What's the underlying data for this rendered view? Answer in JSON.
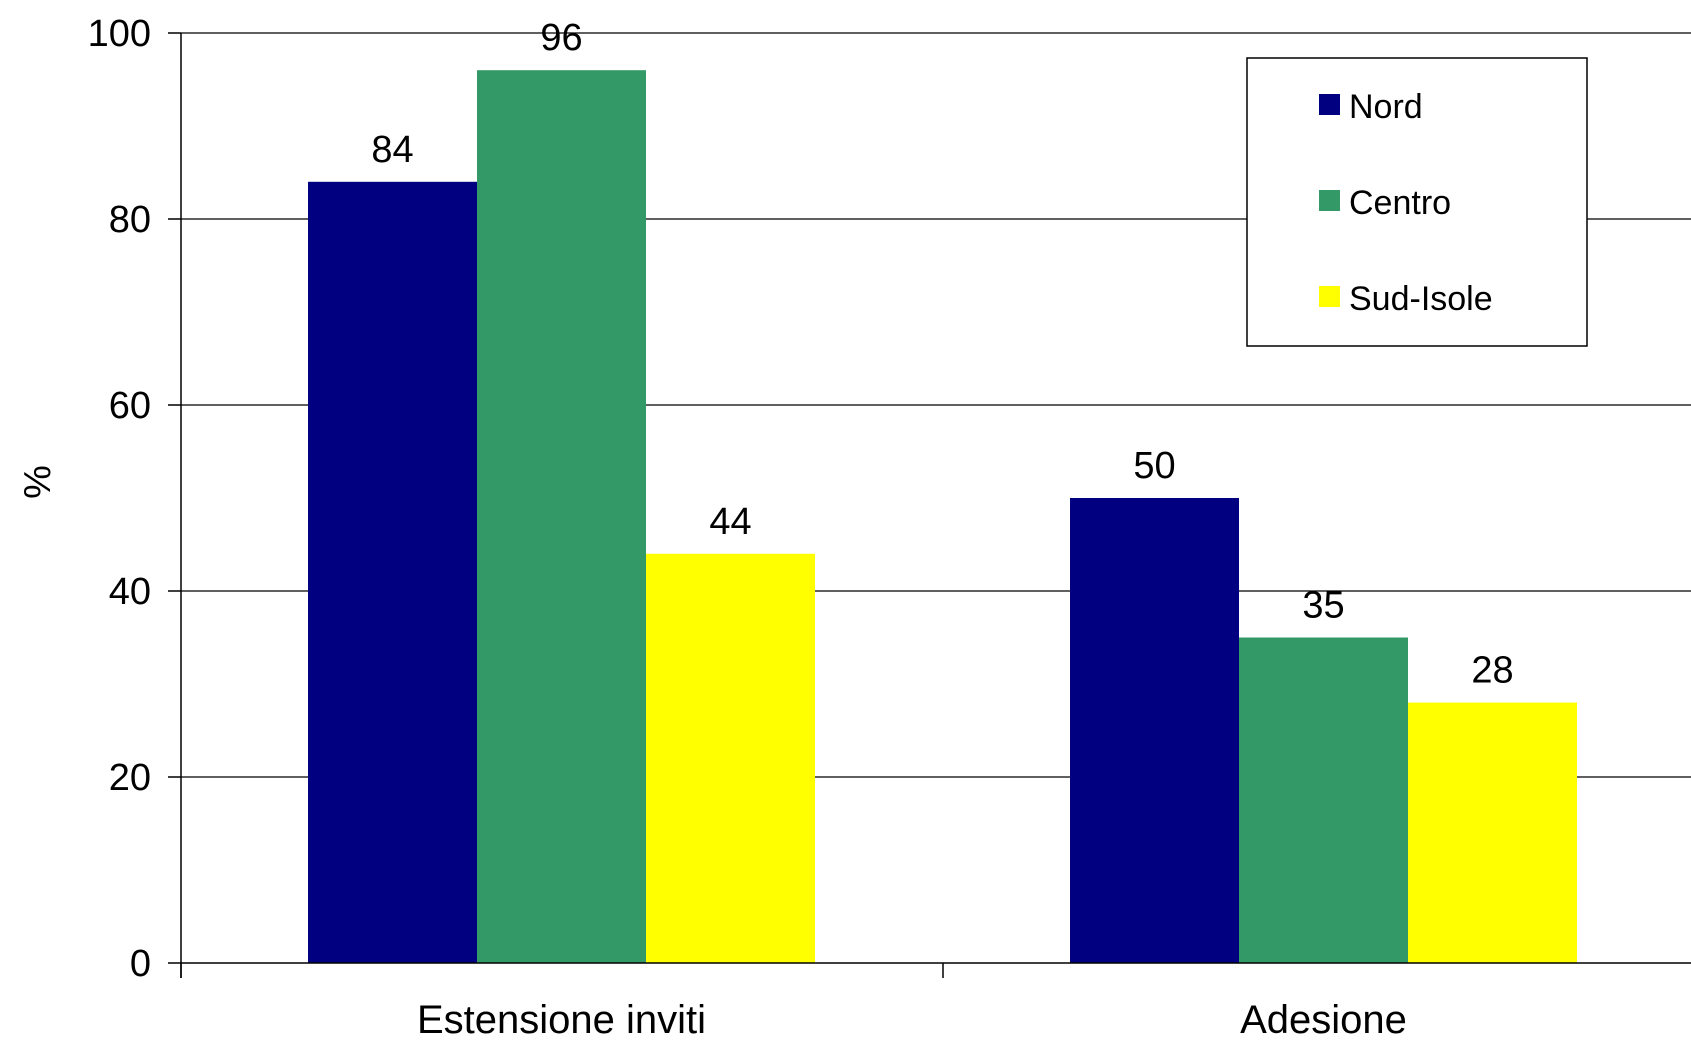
{
  "chart_data": {
    "type": "bar",
    "title": "",
    "xlabel": "",
    "ylabel": "%",
    "ylim": [
      0,
      100
    ],
    "yticks": [
      0,
      20,
      40,
      60,
      80,
      100
    ],
    "grid": true,
    "legend_position": "top-right",
    "categories": [
      "Estensione inviti",
      "Adesione"
    ],
    "series": [
      {
        "name": "Nord",
        "color": "#000080",
        "values": [
          84,
          50
        ]
      },
      {
        "name": "Centro",
        "color": "#339966",
        "values": [
          96,
          35
        ]
      },
      {
        "name": "Sud-Isole",
        "color": "#FFFF00",
        "values": [
          44,
          28
        ]
      }
    ]
  }
}
